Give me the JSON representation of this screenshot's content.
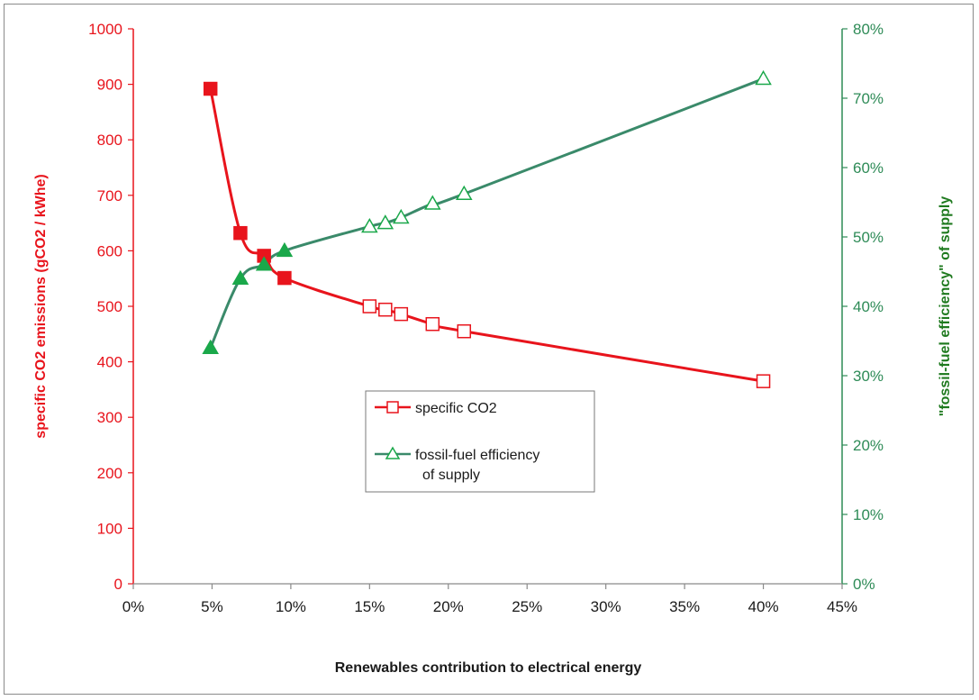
{
  "chart_data": {
    "type": "line",
    "x": [
      0.049,
      0.068,
      0.083,
      0.096,
      0.15,
      0.16,
      0.17,
      0.19,
      0.21,
      0.4
    ],
    "xlabel": "Renewables contribution to electrical energy",
    "xlim": [
      0,
      0.45
    ],
    "x_ticks": [
      "0%",
      "5%",
      "10%",
      "15%",
      "20%",
      "25%",
      "30%",
      "35%",
      "40%",
      "45%"
    ],
    "y_left": {
      "label": "specific CO2 emissions (gCO2 / kWhe)",
      "lim": [
        0,
        1000
      ],
      "ticks": [
        "0",
        "100",
        "200",
        "300",
        "400",
        "500",
        "600",
        "700",
        "800",
        "900",
        "1000"
      ],
      "color": "#e8141c"
    },
    "y_right": {
      "label": "\"fossil-fuel efficiency\" of supply",
      "lim": [
        0,
        0.8
      ],
      "ticks": [
        "0%",
        "10%",
        "20%",
        "30%",
        "40%",
        "50%",
        "60%",
        "70%",
        "80%"
      ],
      "color": "#2e8b57"
    },
    "series": [
      {
        "name": "specific CO2",
        "axis": "left",
        "color": "#e8141c",
        "marker": "square",
        "filled_count": 4,
        "values": [
          892,
          632,
          591,
          551,
          500,
          494,
          486,
          468,
          455,
          365
        ]
      },
      {
        "name": "fossil-fuel efficiency of supply",
        "axis": "right",
        "color": "#3a8a6a",
        "marker_color": "#1aa84a",
        "marker": "triangle",
        "filled_count": 4,
        "values": [
          0.34,
          0.44,
          0.46,
          0.48,
          0.515,
          0.52,
          0.528,
          0.548,
          0.562,
          0.728
        ]
      }
    ],
    "legend": {
      "placement": "center"
    },
    "grid": false
  }
}
